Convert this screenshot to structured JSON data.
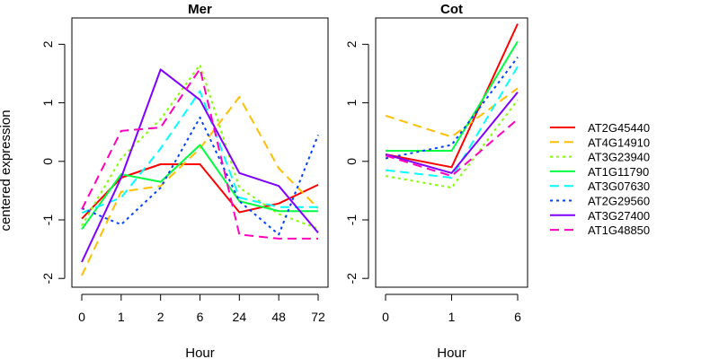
{
  "chart_data": {
    "type": "line",
    "ylabel": "centered expression",
    "ylim": [
      -2,
      2
    ],
    "y_ticks": [
      -2,
      -1,
      0,
      1,
      2
    ],
    "legend": "right",
    "grid": false,
    "panels": [
      {
        "title": "Mer",
        "xlabel": "Hour",
        "x": [
          "0",
          "1",
          "2",
          "6",
          "24",
          "48",
          "72"
        ],
        "series": [
          {
            "name": "AT2G45440",
            "color": "#ff0000",
            "dash": "solid",
            "values": [
              -0.98,
              -0.28,
              -0.05,
              -0.05,
              -0.87,
              -0.72,
              -0.4
            ]
          },
          {
            "name": "AT4G14910",
            "color": "#ffbf00",
            "dash": "dashed",
            "values": [
              -1.95,
              -0.52,
              -0.42,
              0.22,
              1.1,
              -0.12,
              -0.8
            ]
          },
          {
            "name": "AT3G23940",
            "color": "#80ff00",
            "dash": "dotted",
            "values": [
              -1.1,
              0.05,
              0.72,
              1.65,
              -0.45,
              -0.9,
              -1.15
            ]
          },
          {
            "name": "AT1G11790",
            "color": "#00ff40",
            "dash": "solid",
            "values": [
              -1.16,
              -0.22,
              -0.35,
              0.28,
              -0.68,
              -0.85,
              -0.85
            ]
          },
          {
            "name": "AT3G07630",
            "color": "#00ffff",
            "dash": "dashed",
            "values": [
              -0.88,
              -0.62,
              0.22,
              1.2,
              -0.62,
              -0.78,
              -0.78
            ]
          },
          {
            "name": "AT2G29560",
            "color": "#0040ff",
            "dash": "dotted",
            "values": [
              -0.8,
              -1.08,
              -0.45,
              0.75,
              -0.68,
              -1.25,
              0.45
            ]
          },
          {
            "name": "AT3G27400",
            "color": "#8000ff",
            "dash": "solid",
            "values": [
              -1.72,
              -0.28,
              1.57,
              1.05,
              -0.2,
              -0.42,
              -1.22
            ]
          },
          {
            "name": "AT1G48850",
            "color": "#ff00bf",
            "dash": "dashed",
            "values": [
              -0.82,
              0.52,
              0.58,
              1.58,
              -1.25,
              -1.32,
              -1.32
            ]
          }
        ]
      },
      {
        "title": "Cot",
        "xlabel": "Hour",
        "x": [
          "0",
          "1",
          "6"
        ],
        "series": [
          {
            "name": "AT2G45440",
            "color": "#ff0000",
            "dash": "solid",
            "values": [
              0.12,
              -0.1,
              2.35
            ]
          },
          {
            "name": "AT4G14910",
            "color": "#ffbf00",
            "dash": "dashed",
            "values": [
              0.78,
              0.42,
              1.25
            ]
          },
          {
            "name": "AT3G23940",
            "color": "#80ff00",
            "dash": "dotted",
            "values": [
              -0.25,
              -0.45,
              1.05
            ]
          },
          {
            "name": "AT1G11790",
            "color": "#00ff40",
            "dash": "solid",
            "values": [
              0.18,
              0.18,
              2.05
            ]
          },
          {
            "name": "AT3G07630",
            "color": "#00ffff",
            "dash": "dashed",
            "values": [
              -0.15,
              -0.28,
              1.62
            ]
          },
          {
            "name": "AT2G29560",
            "color": "#0040ff",
            "dash": "dotted",
            "values": [
              0.05,
              0.28,
              1.78
            ]
          },
          {
            "name": "AT3G27400",
            "color": "#8000ff",
            "dash": "solid",
            "values": [
              0.12,
              -0.2,
              1.18
            ]
          },
          {
            "name": "AT1G48850",
            "color": "#ff00bf",
            "dash": "dashed",
            "values": [
              0.1,
              -0.25,
              0.72
            ]
          }
        ]
      }
    ]
  }
}
